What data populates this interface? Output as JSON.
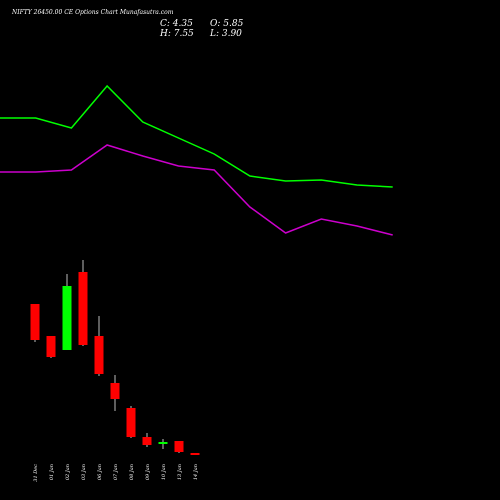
{
  "chart_data": [
    {
      "type": "line",
      "title": "NIFTY 26450.00 CE Options Chart Munafasutra.com",
      "annotations": [
        "C: 4.35",
        "H: 7.55",
        "O: 5.85",
        "L: 3.90"
      ],
      "ylim": [
        0,
        100
      ],
      "series": [
        {
          "color": "#00ff00",
          "values": [
            71,
            71,
            66,
            87,
            69,
            61,
            53,
            42,
            39.5,
            40,
            37.5,
            36.5
          ]
        },
        {
          "color": "#cc00cc",
          "values": [
            44,
            44,
            45,
            57.5,
            52,
            47,
            45,
            26.5,
            13.5,
            20.5,
            17,
            12.5
          ]
        }
      ]
    },
    {
      "type": "candlestick",
      "categories": [
        "31 Dec",
        "01 Jan",
        "02 Jan",
        "03 Jan",
        "06 Jan",
        "07 Jan",
        "08 Jan",
        "09 Jan",
        "10 Jan",
        "13 Jan",
        "14 Jan"
      ],
      "open": [
        31.2,
        24.8,
        22,
        37.6,
        24.8,
        15.4,
        10.4,
        4.6,
        3.2,
        3.8,
        1.4
      ],
      "high": [
        31.2,
        24.8,
        37.2,
        40,
        28.8,
        17,
        10.8,
        5.4,
        4.2,
        3.8,
        1.4
      ],
      "low": [
        23.6,
        20.4,
        22,
        22.8,
        16.8,
        9.8,
        4.4,
        2.6,
        2.2,
        1.4,
        1
      ],
      "close": [
        24,
        20.6,
        34.8,
        23,
        17.2,
        12.2,
        4.6,
        3,
        3.6,
        1.6,
        1
      ],
      "up_color": "#00ff00",
      "down_color": "#ff0000",
      "ylim": [
        0,
        40
      ]
    }
  ]
}
